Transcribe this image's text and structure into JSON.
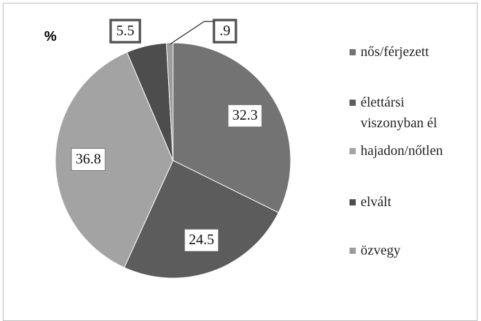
{
  "chart_data": {
    "type": "pie",
    "title": "%",
    "categories": [
      "nős/férjezett",
      "élettársi viszonyban él",
      "hajadon/nőtlen",
      "elvált",
      "özvegy"
    ],
    "values": [
      32.3,
      24.5,
      36.8,
      5.5,
      0.9
    ],
    "value_labels": [
      "32.3",
      "24.5",
      "36.8",
      "5.5",
      ".9"
    ],
    "colors": [
      "#737373",
      "#5c5c5c",
      "#a3a3a3",
      "#4d4d4d",
      "#9c9c9c"
    ],
    "legend": "right"
  }
}
